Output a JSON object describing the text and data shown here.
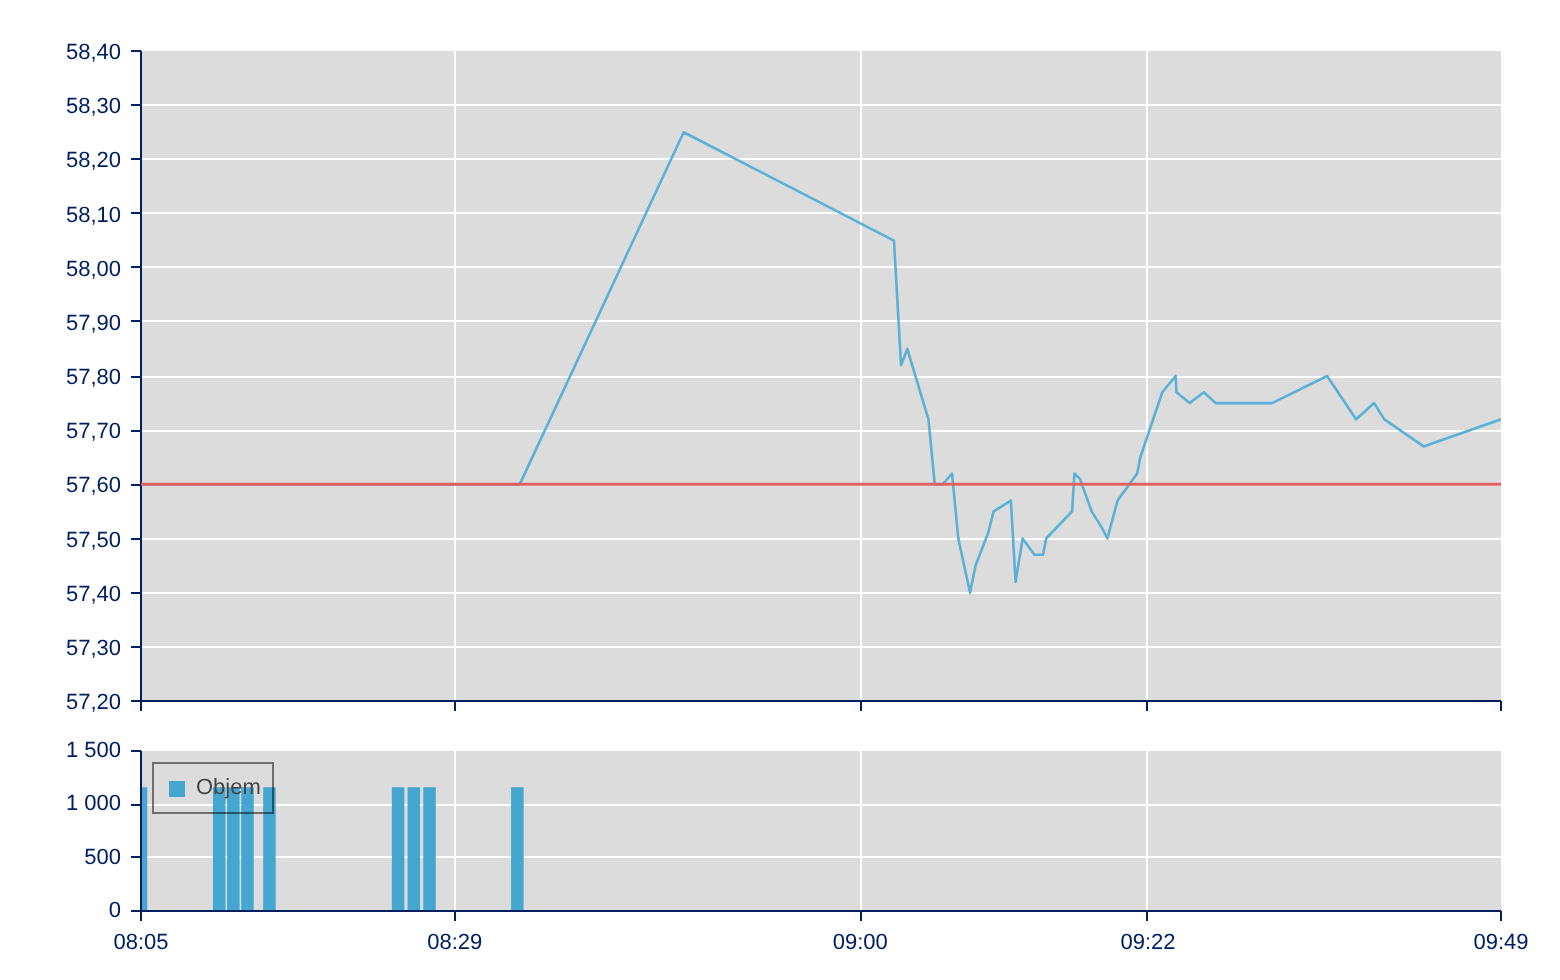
{
  "chart_data": [
    {
      "type": "line",
      "x": [
        8.0833,
        8.566,
        8.775,
        9.043,
        9.052,
        9.06,
        9.087,
        9.095,
        9.105,
        9.117,
        9.125,
        9.14,
        9.147,
        9.163,
        9.17,
        9.192,
        9.198,
        9.207,
        9.222,
        9.233,
        9.237,
        9.27,
        9.273,
        9.28,
        9.295,
        9.308,
        9.315,
        9.328,
        9.353,
        9.357,
        9.385,
        9.402,
        9.403,
        9.42,
        9.438,
        9.453,
        9.525,
        9.595,
        9.632,
        9.655,
        9.668,
        9.718,
        9.8167
      ],
      "series": [
        {
          "color": "#5ab0d6",
          "values": [
            57.6,
            57.6,
            58.25,
            58.05,
            57.82,
            57.85,
            57.72,
            57.6,
            57.6,
            57.62,
            57.5,
            57.4,
            57.45,
            57.51,
            57.55,
            57.57,
            57.42,
            57.5,
            57.47,
            57.47,
            57.5,
            57.55,
            57.62,
            57.61,
            57.55,
            57.52,
            57.5,
            57.57,
            57.62,
            57.65,
            57.77,
            57.8,
            57.77,
            57.75,
            57.77,
            57.75,
            57.75,
            57.8,
            57.72,
            57.75,
            57.72,
            57.67,
            57.72
          ]
        }
      ],
      "xlim": [
        8.0833,
        9.8167
      ],
      "xticks": [
        {
          "value": 8.0833,
          "label": null
        },
        {
          "value": 8.4833,
          "label": null
        },
        {
          "value": 9,
          "label": null
        },
        {
          "value": 9.3667,
          "label": null
        },
        {
          "value": 9.8167,
          "label": null
        }
      ],
      "ylim": [
        57.2,
        58.4
      ],
      "yticks": [
        {
          "value": 57.2,
          "label": "57,20"
        },
        {
          "value": 57.3,
          "label": "57,30"
        },
        {
          "value": 57.4,
          "label": "57,40"
        },
        {
          "value": 57.5,
          "label": "57,50"
        },
        {
          "value": 57.6,
          "label": "57,60"
        },
        {
          "value": 57.7,
          "label": "57,70"
        },
        {
          "value": 57.8,
          "label": "57,80"
        },
        {
          "value": 57.9,
          "label": "57,90"
        },
        {
          "value": 58.0,
          "label": "58,00"
        },
        {
          "value": 58.1,
          "label": "58,10"
        },
        {
          "value": 58.2,
          "label": "58,20"
        },
        {
          "value": 58.3,
          "label": "58,30"
        },
        {
          "value": 58.4,
          "label": "58,40"
        }
      ],
      "ref_lines": [
        {
          "axis": "y",
          "value": 57.6,
          "color": "#e06060"
        }
      ],
      "grid": true,
      "tick_labels": "y",
      "marker": "none",
      "line_style": "solid"
    },
    {
      "type": "bar",
      "x": [
        8.0833,
        8.183,
        8.201,
        8.219,
        8.247,
        8.411,
        8.431,
        8.451,
        8.563
      ],
      "series": [
        {
          "name": "Objem",
          "color": "#45a7d0",
          "values": [
            1160,
            1160,
            1160,
            1160,
            1160,
            1160,
            1160,
            1160,
            1160
          ]
        }
      ],
      "xlim": [
        8.0833,
        9.8167
      ],
      "xticks": [
        {
          "value": 8.0833,
          "label": "08:05"
        },
        {
          "value": 8.4833,
          "label": "08:29"
        },
        {
          "value": 9,
          "label": "09:00"
        },
        {
          "value": 9.3667,
          "label": "09:22"
        },
        {
          "value": 9.8167,
          "label": "09:49"
        }
      ],
      "ylim": [
        0,
        1500
      ],
      "yticks": [
        0,
        500,
        {
          "value": 1000,
          "label": "1 000"
        },
        {
          "value": 1500,
          "label": "1 500"
        }
      ],
      "grid": true,
      "legend": "top left"
    }
  ]
}
